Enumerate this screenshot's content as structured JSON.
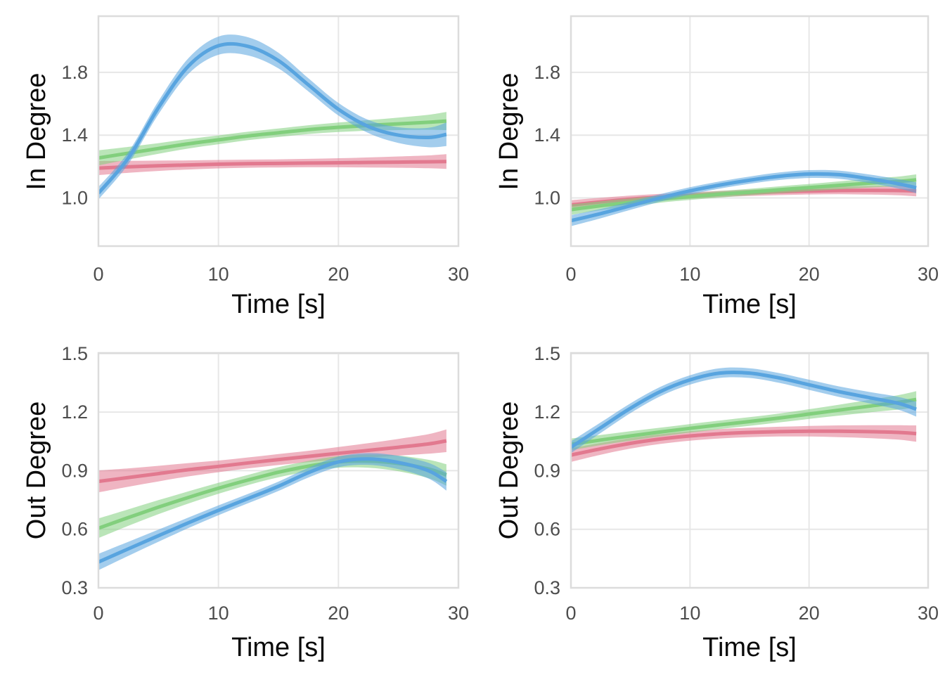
{
  "page": {
    "background": "#ffffff"
  },
  "styles": {
    "grid_color": "#e7e7e7",
    "panel_border_color": "#dcdcdc",
    "tick_label_color": "#4d4d4d",
    "axis_title_color": "#0a0a0a",
    "band_opacity": 0.55,
    "line_width": 5,
    "series_colors": {
      "red": "#e2798f",
      "green": "#82cf7d",
      "blue": "#58a4df"
    }
  },
  "chart_data": [
    {
      "id": "in-degree-left",
      "type": "line",
      "title": "",
      "xlabel": "Time [s]",
      "ylabel": "In Degree",
      "xlim": [
        0,
        30
      ],
      "ylim": [
        0.693,
        2.158
      ],
      "xticks": [
        0,
        10,
        20,
        30
      ],
      "xtick_labels": [
        "0",
        "10",
        "20",
        "30"
      ],
      "yticks": [
        1.0,
        1.4,
        1.8
      ],
      "ytick_labels": [
        "1.0",
        "1.4",
        "1.8"
      ],
      "grid": "major-only",
      "legend": "none",
      "x": [
        0,
        2.5,
        5,
        7.5,
        10,
        12.5,
        15,
        17.5,
        20,
        22.5,
        25,
        27.5,
        29
      ],
      "series": [
        {
          "name": "red",
          "color": "#e2798f",
          "y": [
            1.19,
            1.198,
            1.205,
            1.21,
            1.215,
            1.218,
            1.22,
            1.222,
            1.224,
            1.226,
            1.228,
            1.23,
            1.232
          ],
          "lo": [
            1.145,
            1.16,
            1.172,
            1.181,
            1.188,
            1.192,
            1.194,
            1.195,
            1.195,
            1.194,
            1.192,
            1.189,
            1.185
          ],
          "hi": [
            1.235,
            1.236,
            1.238,
            1.239,
            1.242,
            1.244,
            1.246,
            1.249,
            1.253,
            1.258,
            1.264,
            1.271,
            1.279
          ]
        },
        {
          "name": "green",
          "color": "#82cf7d",
          "y": [
            1.255,
            1.285,
            1.315,
            1.345,
            1.37,
            1.395,
            1.415,
            1.435,
            1.45,
            1.462,
            1.472,
            1.482,
            1.49
          ],
          "lo": [
            1.207,
            1.245,
            1.281,
            1.315,
            1.342,
            1.368,
            1.388,
            1.407,
            1.42,
            1.428,
            1.432,
            1.434,
            1.432
          ],
          "hi": [
            1.303,
            1.325,
            1.349,
            1.375,
            1.398,
            1.422,
            1.442,
            1.463,
            1.48,
            1.496,
            1.512,
            1.53,
            1.548
          ]
        },
        {
          "name": "blue",
          "color": "#58a4df",
          "y": [
            1.03,
            1.255,
            1.575,
            1.84,
            1.97,
            1.965,
            1.875,
            1.72,
            1.565,
            1.455,
            1.4,
            1.385,
            1.405
          ],
          "lo": [
            0.99,
            1.217,
            1.533,
            1.79,
            1.912,
            1.907,
            1.825,
            1.678,
            1.525,
            1.413,
            1.35,
            1.323,
            1.33
          ],
          "hi": [
            1.07,
            1.293,
            1.617,
            1.89,
            2.028,
            2.023,
            1.925,
            1.762,
            1.605,
            1.497,
            1.45,
            1.447,
            1.48
          ]
        }
      ]
    },
    {
      "id": "in-degree-right",
      "type": "line",
      "title": "",
      "xlabel": "Time [s]",
      "ylabel": "In Degree",
      "xlim": [
        0,
        30
      ],
      "ylim": [
        0.693,
        2.158
      ],
      "xticks": [
        0,
        10,
        20,
        30
      ],
      "xtick_labels": [
        "0",
        "10",
        "20",
        "30"
      ],
      "yticks": [
        1.0,
        1.4,
        1.8
      ],
      "ytick_labels": [
        "1.0",
        "1.4",
        "1.8"
      ],
      "grid": "major-only",
      "legend": "none",
      "x": [
        0,
        2.5,
        5,
        7.5,
        10,
        12.5,
        15,
        17.5,
        20,
        22.5,
        25,
        27.5,
        29
      ],
      "series": [
        {
          "name": "red",
          "color": "#e2798f",
          "y": [
            0.955,
            0.975,
            0.992,
            1.005,
            1.015,
            1.025,
            1.032,
            1.039,
            1.044,
            1.047,
            1.048,
            1.047,
            1.044
          ],
          "lo": [
            0.925,
            0.949,
            0.969,
            0.984,
            0.995,
            1.005,
            1.012,
            1.018,
            1.022,
            1.023,
            1.021,
            1.017,
            1.01
          ],
          "hi": [
            0.985,
            1.001,
            1.015,
            1.026,
            1.035,
            1.045,
            1.052,
            1.06,
            1.066,
            1.071,
            1.075,
            1.077,
            1.078
          ]
        },
        {
          "name": "green",
          "color": "#82cf7d",
          "y": [
            0.925,
            0.95,
            0.972,
            0.992,
            1.008,
            1.023,
            1.037,
            1.052,
            1.066,
            1.08,
            1.094,
            1.105,
            1.115
          ],
          "lo": [
            0.892,
            0.922,
            0.947,
            0.97,
            0.987,
            1.002,
            1.016,
            1.03,
            1.043,
            1.055,
            1.066,
            1.074,
            1.08
          ],
          "hi": [
            0.958,
            0.978,
            0.997,
            1.014,
            1.029,
            1.044,
            1.058,
            1.074,
            1.089,
            1.105,
            1.122,
            1.136,
            1.15
          ]
        },
        {
          "name": "blue",
          "color": "#58a4df",
          "y": [
            0.855,
            0.9,
            0.95,
            1.0,
            1.045,
            1.082,
            1.113,
            1.138,
            1.152,
            1.148,
            1.123,
            1.09,
            1.065
          ],
          "lo": [
            0.82,
            0.87,
            0.924,
            0.976,
            1.022,
            1.059,
            1.09,
            1.114,
            1.127,
            1.122,
            1.096,
            1.06,
            1.03
          ],
          "hi": [
            0.89,
            0.93,
            0.976,
            1.024,
            1.068,
            1.105,
            1.136,
            1.162,
            1.177,
            1.174,
            1.15,
            1.12,
            1.1
          ]
        }
      ]
    },
    {
      "id": "out-degree-left",
      "type": "line",
      "title": "",
      "xlabel": "Time [s]",
      "ylabel": "Out Degree",
      "xlim": [
        0,
        30
      ],
      "ylim": [
        0.3,
        1.503
      ],
      "xticks": [
        0,
        10,
        20,
        30
      ],
      "xtick_labels": [
        "0",
        "10",
        "20",
        "30"
      ],
      "yticks": [
        0.3,
        0.6,
        0.9,
        1.2,
        1.5
      ],
      "ytick_labels": [
        "0.3",
        "0.6",
        "0.9",
        "1.2",
        "1.5"
      ],
      "grid": "major-only",
      "legend": "none",
      "x": [
        0,
        2.5,
        5,
        7.5,
        10,
        12.5,
        15,
        17.5,
        20,
        22.5,
        25,
        27.5,
        29
      ],
      "series": [
        {
          "name": "red",
          "color": "#e2798f",
          "y": [
            0.845,
            0.865,
            0.885,
            0.905,
            0.922,
            0.94,
            0.957,
            0.973,
            0.989,
            1.004,
            1.02,
            1.037,
            1.053
          ],
          "lo": [
            0.789,
            0.818,
            0.845,
            0.871,
            0.892,
            0.912,
            0.929,
            0.944,
            0.957,
            0.967,
            0.977,
            0.987,
            0.995
          ],
          "hi": [
            0.901,
            0.912,
            0.925,
            0.939,
            0.952,
            0.968,
            0.985,
            1.002,
            1.021,
            1.041,
            1.063,
            1.087,
            1.111
          ]
        },
        {
          "name": "green",
          "color": "#82cf7d",
          "y": [
            0.605,
            0.66,
            0.713,
            0.763,
            0.81,
            0.853,
            0.892,
            0.923,
            0.945,
            0.949,
            0.937,
            0.909,
            0.878
          ],
          "lo": [
            0.555,
            0.618,
            0.677,
            0.732,
            0.782,
            0.827,
            0.866,
            0.896,
            0.915,
            0.915,
            0.897,
            0.862,
            0.823
          ],
          "hi": [
            0.655,
            0.702,
            0.749,
            0.794,
            0.838,
            0.879,
            0.918,
            0.95,
            0.975,
            0.983,
            0.977,
            0.956,
            0.933
          ]
        },
        {
          "name": "blue",
          "color": "#58a4df",
          "y": [
            0.432,
            0.5,
            0.567,
            0.633,
            0.697,
            0.758,
            0.82,
            0.89,
            0.945,
            0.96,
            0.942,
            0.9,
            0.845
          ],
          "lo": [
            0.39,
            0.464,
            0.536,
            0.606,
            0.672,
            0.734,
            0.796,
            0.865,
            0.918,
            0.93,
            0.908,
            0.86,
            0.798
          ],
          "hi": [
            0.474,
            0.536,
            0.598,
            0.66,
            0.722,
            0.782,
            0.844,
            0.915,
            0.972,
            0.99,
            0.976,
            0.94,
            0.892
          ]
        }
      ]
    },
    {
      "id": "out-degree-right",
      "type": "line",
      "title": "",
      "xlabel": "Time [s]",
      "ylabel": "Out Degree",
      "xlim": [
        0,
        30
      ],
      "ylim": [
        0.3,
        1.503
      ],
      "xticks": [
        0,
        10,
        20,
        30
      ],
      "xtick_labels": [
        "0",
        "10",
        "20",
        "30"
      ],
      "yticks": [
        0.3,
        0.6,
        0.9,
        1.2,
        1.5
      ],
      "ytick_labels": [
        "0.3",
        "0.6",
        "0.9",
        "1.2",
        "1.5"
      ],
      "grid": "major-only",
      "legend": "none",
      "x": [
        0,
        2.5,
        5,
        7.5,
        10,
        12.5,
        15,
        17.5,
        20,
        22.5,
        25,
        27.5,
        29
      ],
      "series": [
        {
          "name": "red",
          "color": "#e2798f",
          "y": [
            0.98,
            1.012,
            1.04,
            1.062,
            1.078,
            1.089,
            1.096,
            1.1,
            1.102,
            1.102,
            1.1,
            1.096,
            1.09
          ],
          "lo": [
            0.945,
            0.982,
            1.013,
            1.037,
            1.054,
            1.065,
            1.072,
            1.075,
            1.075,
            1.072,
            1.067,
            1.059,
            1.048
          ],
          "hi": [
            1.015,
            1.042,
            1.067,
            1.087,
            1.102,
            1.113,
            1.12,
            1.125,
            1.129,
            1.132,
            1.133,
            1.133,
            1.132
          ]
        },
        {
          "name": "green",
          "color": "#82cf7d",
          "y": [
            1.035,
            1.057,
            1.078,
            1.098,
            1.117,
            1.135,
            1.152,
            1.17,
            1.19,
            1.21,
            1.23,
            1.25,
            1.265
          ],
          "lo": [
            1.005,
            1.031,
            1.054,
            1.076,
            1.095,
            1.113,
            1.13,
            1.147,
            1.165,
            1.182,
            1.198,
            1.213,
            1.223
          ],
          "hi": [
            1.065,
            1.083,
            1.102,
            1.12,
            1.139,
            1.157,
            1.174,
            1.193,
            1.215,
            1.238,
            1.262,
            1.287,
            1.307
          ]
        },
        {
          "name": "blue",
          "color": "#58a4df",
          "y": [
            1.02,
            1.12,
            1.22,
            1.305,
            1.365,
            1.4,
            1.4,
            1.375,
            1.34,
            1.305,
            1.275,
            1.245,
            1.215
          ],
          "lo": [
            0.99,
            1.093,
            1.195,
            1.281,
            1.341,
            1.375,
            1.375,
            1.35,
            1.314,
            1.278,
            1.246,
            1.212,
            1.177
          ],
          "hi": [
            1.05,
            1.147,
            1.245,
            1.329,
            1.389,
            1.425,
            1.425,
            1.4,
            1.366,
            1.332,
            1.304,
            1.278,
            1.253
          ]
        }
      ]
    }
  ]
}
